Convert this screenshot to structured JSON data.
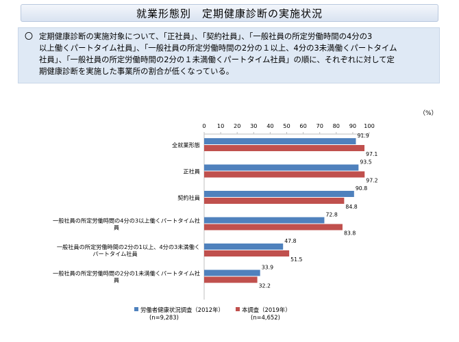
{
  "header": {
    "title": "就業形態別　定期健康診断の実施状況",
    "summary_marker": "〇",
    "summary_lines": [
      "定期健康診断の実施対象について、「正社員」、「契約社員」、「一般社員の所定労働時間の4分の3",
      "以上働くパートタイム社員」、「一般社員の所定労働時間の2分の１以上、4分の3未満働くパートタイム",
      "社員」、「一般社員の所定労働時間の2分の１未満働くパートタイム社員」の順に、それぞれに対して定",
      "期健康診断を実施した事業所の割合が低くなっている。"
    ]
  },
  "chart_data": {
    "type": "bar",
    "orientation": "horizontal",
    "unit": "（%）",
    "xlim": [
      0,
      100
    ],
    "ticks": [
      "0",
      "10",
      "20",
      "30",
      "40",
      "50",
      "60",
      "70",
      "80",
      "90",
      "100"
    ],
    "categories": [
      [
        "全就業形態"
      ],
      [
        "正社員"
      ],
      [
        "契約社員"
      ],
      [
        "一般社員の所定労働時間の4分の3以上働くパートタイム社",
        "員"
      ],
      [
        "一般社員の所定労働時間の2分の1以上、4分の3未満働く",
        "パートタイム社員"
      ],
      [
        "一般社員の所定労働時間の2分の1未満働くパートタイム社",
        "員"
      ]
    ],
    "series": [
      {
        "name": "労働者健康状況調査（2012年）",
        "n": "(n=9,283)",
        "color": "#4f81bd",
        "values": [
          91.9,
          93.5,
          90.8,
          72.8,
          47.8,
          33.9
        ],
        "labels": [
          "91.9",
          "93.5",
          "90.8",
          "72.8",
          "47.8",
          "33.9"
        ]
      },
      {
        "name": "本調査（2019年）",
        "n": "(n=4,652)",
        "color": "#c0504d",
        "values": [
          97.1,
          97.2,
          84.8,
          83.8,
          51.5,
          32.2
        ],
        "labels": [
          "97.1",
          "97.2",
          "84.8",
          "83.8",
          "51.5",
          "32.2"
        ]
      }
    ],
    "legend_position": "bottom"
  }
}
